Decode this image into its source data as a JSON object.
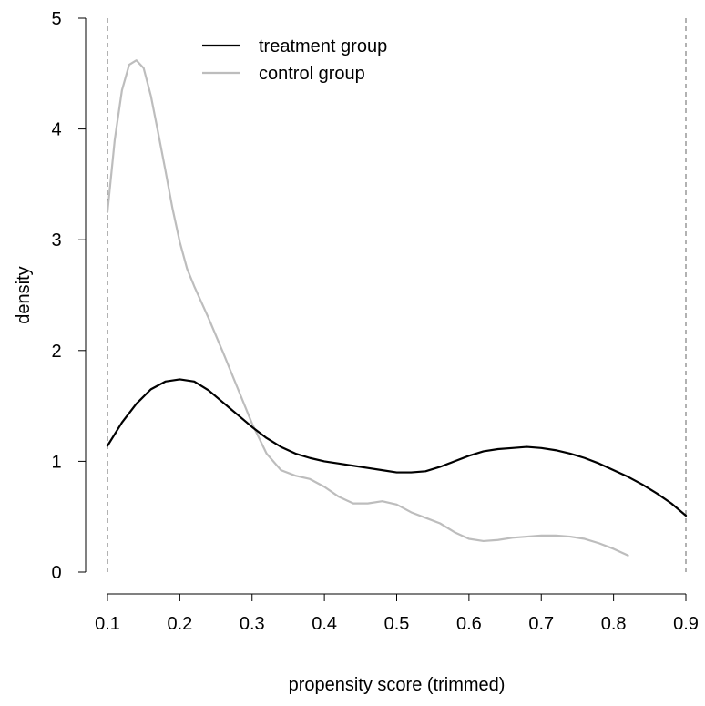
{
  "chart_data": {
    "type": "line",
    "xlabel": "propensity score (trimmed)",
    "ylabel": "density",
    "xlim": [
      0.1,
      0.9
    ],
    "ylim": [
      0,
      5
    ],
    "x_ticks": [
      "0.1",
      "0.2",
      "0.3",
      "0.4",
      "0.5",
      "0.6",
      "0.7",
      "0.8",
      "0.9"
    ],
    "y_ticks": [
      "0",
      "1",
      "2",
      "3",
      "4",
      "5"
    ],
    "reference_lines_x": [
      0.1,
      0.9
    ],
    "grid": false,
    "legend": {
      "placement": "top-left"
    },
    "series": [
      {
        "name": "treatment group",
        "color": "#000000",
        "x": [
          0.1,
          0.12,
          0.14,
          0.16,
          0.18,
          0.2,
          0.22,
          0.24,
          0.26,
          0.28,
          0.3,
          0.32,
          0.34,
          0.36,
          0.38,
          0.4,
          0.42,
          0.44,
          0.46,
          0.48,
          0.5,
          0.52,
          0.54,
          0.56,
          0.58,
          0.6,
          0.62,
          0.64,
          0.66,
          0.68,
          0.7,
          0.72,
          0.74,
          0.76,
          0.78,
          0.8,
          0.82,
          0.84,
          0.86,
          0.88,
          0.9
        ],
        "y": [
          1.14,
          1.35,
          1.52,
          1.65,
          1.72,
          1.74,
          1.72,
          1.64,
          1.53,
          1.42,
          1.31,
          1.21,
          1.13,
          1.07,
          1.03,
          1.0,
          0.98,
          0.96,
          0.94,
          0.92,
          0.9,
          0.9,
          0.91,
          0.95,
          1.0,
          1.05,
          1.09,
          1.11,
          1.12,
          1.13,
          1.12,
          1.1,
          1.07,
          1.03,
          0.98,
          0.92,
          0.86,
          0.79,
          0.71,
          0.62,
          0.51
        ]
      },
      {
        "name": "control group",
        "color": "#bdbdbd",
        "x": [
          0.1,
          0.11,
          0.12,
          0.13,
          0.14,
          0.15,
          0.16,
          0.17,
          0.18,
          0.19,
          0.2,
          0.21,
          0.22,
          0.24,
          0.26,
          0.28,
          0.3,
          0.32,
          0.34,
          0.36,
          0.38,
          0.4,
          0.42,
          0.44,
          0.46,
          0.48,
          0.5,
          0.52,
          0.54,
          0.56,
          0.58,
          0.6,
          0.62,
          0.64,
          0.66,
          0.68,
          0.7,
          0.72,
          0.74,
          0.76,
          0.78,
          0.8,
          0.82
        ],
        "y": [
          3.25,
          3.9,
          4.35,
          4.58,
          4.62,
          4.55,
          4.3,
          3.97,
          3.63,
          3.28,
          2.98,
          2.74,
          2.58,
          2.29,
          1.98,
          1.66,
          1.34,
          1.07,
          0.92,
          0.87,
          0.84,
          0.77,
          0.68,
          0.62,
          0.62,
          0.64,
          0.61,
          0.54,
          0.49,
          0.44,
          0.36,
          0.3,
          0.28,
          0.29,
          0.31,
          0.32,
          0.33,
          0.33,
          0.32,
          0.3,
          0.26,
          0.21,
          0.15
        ]
      }
    ]
  }
}
